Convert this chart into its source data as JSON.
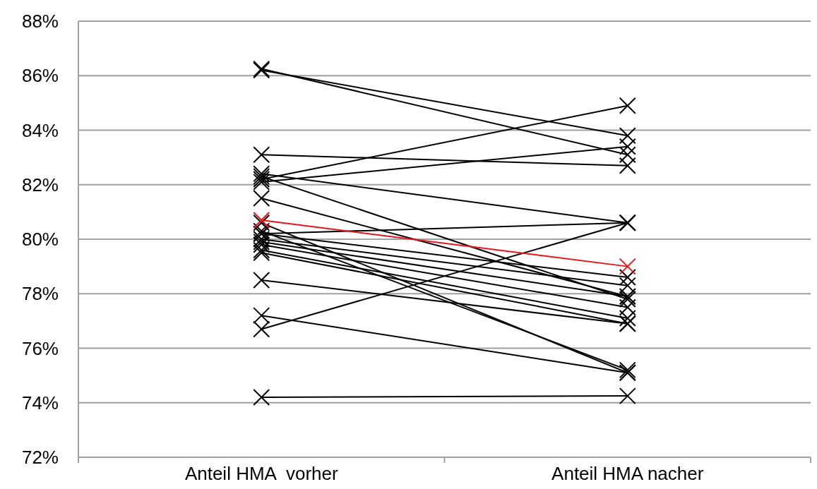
{
  "chart_data": {
    "type": "line",
    "categories": [
      "Anteil HMA  vorher",
      "Anteil HMA nacher"
    ],
    "ylim": [
      72,
      88
    ],
    "yticks": [
      {
        "value": 72,
        "label": "72%"
      },
      {
        "value": 74,
        "label": "74%"
      },
      {
        "value": 76,
        "label": "76%"
      },
      {
        "value": 78,
        "label": "78%"
      },
      {
        "value": 80,
        "label": "80%"
      },
      {
        "value": 82,
        "label": "82%"
      },
      {
        "value": 84,
        "label": "84%"
      },
      {
        "value": 86,
        "label": "86%"
      },
      {
        "value": 88,
        "label": "88%"
      }
    ],
    "grid": "y",
    "marker": "cross",
    "line_style": "solid",
    "series": [
      {
        "color": "#000000",
        "values": [
          86.2,
          83.8
        ]
      },
      {
        "color": "#000000",
        "values": [
          86.25,
          83.1
        ]
      },
      {
        "color": "#000000",
        "values": [
          83.1,
          82.7
        ]
      },
      {
        "color": "#000000",
        "values": [
          82.2,
          84.9
        ]
      },
      {
        "color": "#000000",
        "values": [
          82.1,
          83.4
        ]
      },
      {
        "color": "#000000",
        "values": [
          82.4,
          80.6
        ]
      },
      {
        "color": "#000000",
        "values": [
          82.3,
          77.8
        ]
      },
      {
        "color": "#000000",
        "values": [
          81.5,
          77.9
        ]
      },
      {
        "color": "#000000",
        "values": [
          80.6,
          75.1
        ]
      },
      {
        "color": "#000000",
        "values": [
          80.2,
          80.6
        ]
      },
      {
        "color": "#000000",
        "values": [
          80.2,
          78.6
        ]
      },
      {
        "color": "#000000",
        "values": [
          80.0,
          78.3
        ]
      },
      {
        "color": "#000000",
        "values": [
          79.9,
          77.9
        ]
      },
      {
        "color": "#000000",
        "values": [
          79.8,
          77.5
        ]
      },
      {
        "color": "#000000",
        "values": [
          79.6,
          77.1
        ]
      },
      {
        "color": "#000000",
        "values": [
          79.5,
          76.9
        ]
      },
      {
        "color": "#000000",
        "values": [
          80.3,
          75.2
        ]
      },
      {
        "color": "#000000",
        "values": [
          78.5,
          76.9
        ]
      },
      {
        "color": "#000000",
        "values": [
          77.2,
          75.1
        ]
      },
      {
        "color": "#000000",
        "values": [
          76.7,
          80.6
        ]
      },
      {
        "color": "#000000",
        "values": [
          74.2,
          74.25
        ]
      },
      {
        "color": "#e8141c",
        "values": [
          80.7,
          79.0
        ]
      }
    ]
  }
}
